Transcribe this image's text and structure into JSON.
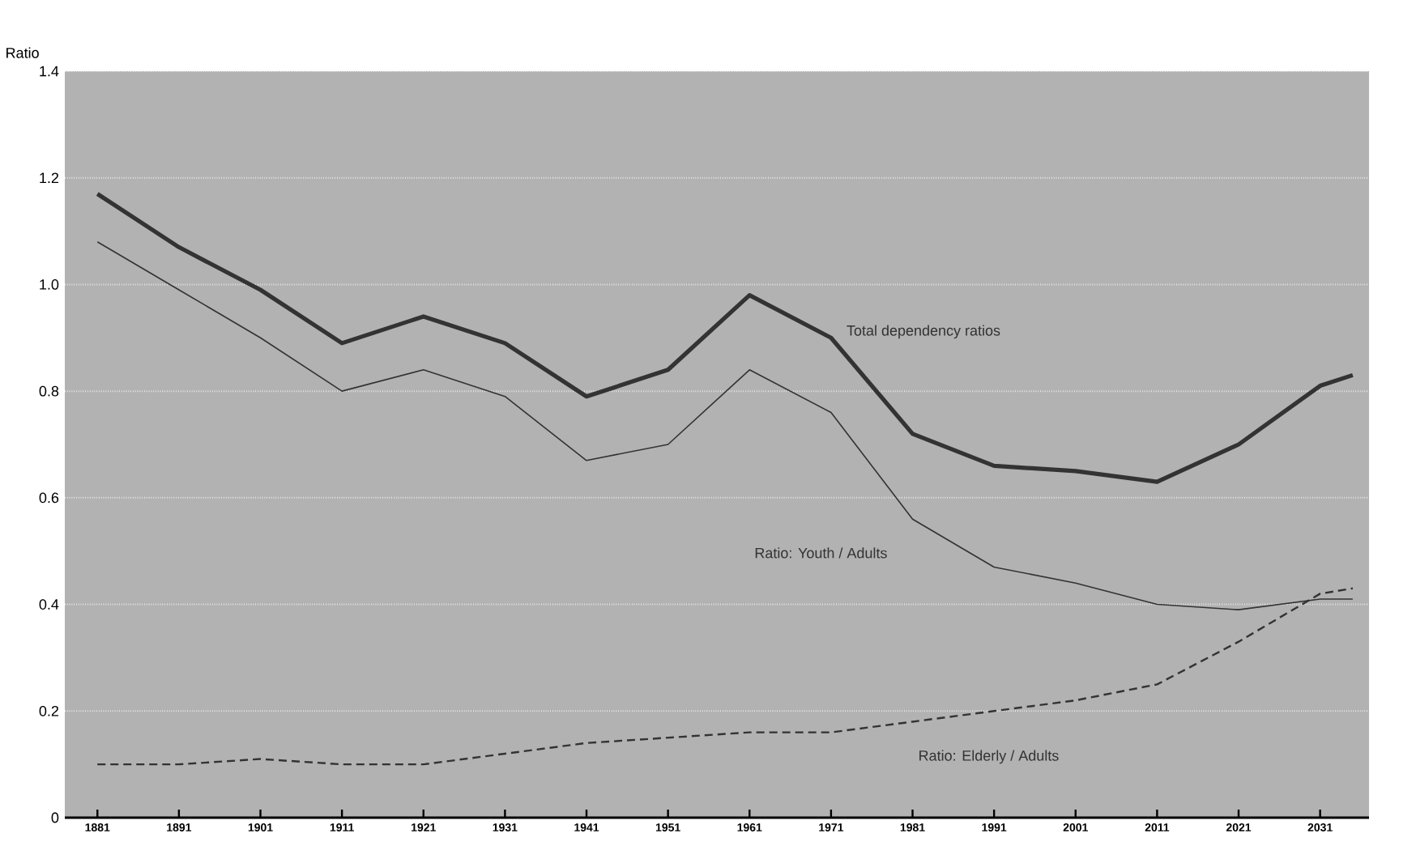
{
  "chart_data": {
    "type": "line",
    "ylabel": "Ratio",
    "x": [
      1881,
      1891,
      1901,
      1911,
      1921,
      1931,
      1941,
      1951,
      1961,
      1971,
      1981,
      1991,
      2001,
      2011,
      2021,
      2031,
      2035
    ],
    "xlim": [
      1877,
      2037
    ],
    "xticks": [
      1881,
      1891,
      1901,
      1911,
      1921,
      1931,
      1941,
      1951,
      1961,
      1971,
      1981,
      1991,
      2001,
      2011,
      2021,
      2031
    ],
    "ylim": [
      0,
      1.4
    ],
    "yticks": [
      0,
      0.2,
      0.4,
      0.6,
      0.8,
      {
        "value": 1.0,
        "label": "1.0"
      },
      1.2,
      1.4
    ],
    "grid": "y",
    "marker": "none",
    "series": [
      {
        "name": "Total dependency ratios",
        "color": "#333333",
        "line_style": "solid",
        "values": [
          1.17,
          1.07,
          0.99,
          0.89,
          0.94,
          0.89,
          0.79,
          0.84,
          0.98,
          0.9,
          0.72,
          0.66,
          0.65,
          0.63,
          0.7,
          0.81,
          0.83
        ]
      },
      {
        "name": "Ratio: Youth / Adults",
        "color": "#333333",
        "line_style": "solid",
        "values": [
          1.08,
          0.99,
          0.9,
          0.8,
          0.84,
          0.79,
          0.67,
          0.7,
          0.84,
          0.76,
          0.56,
          0.47,
          0.44,
          0.4,
          0.39,
          0.41,
          0.41
        ]
      },
      {
        "name": "Ratio: Elderly / Adults",
        "color": "#333333",
        "line_style": "dashed",
        "values": [
          0.1,
          0.1,
          0.11,
          0.1,
          0.1,
          0.12,
          0.14,
          0.15,
          0.16,
          0.16,
          0.18,
          0.2,
          0.22,
          0.25,
          0.33,
          0.42,
          0.43
        ]
      }
    ]
  }
}
